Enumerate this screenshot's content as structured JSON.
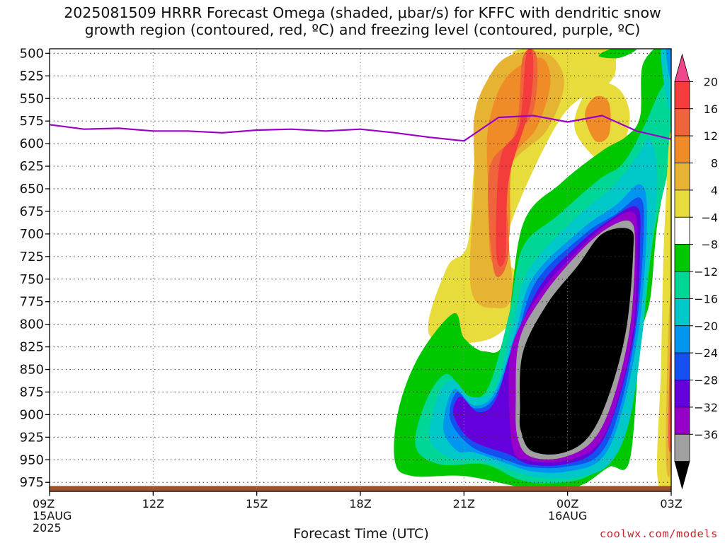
{
  "title_line1": "2025081509 HRRR Forecast Omega (shaded, μbar/s) for KFFC with dendritic snow",
  "title_line2": "growth region (contoured, red, ºC) and freezing level (contoured, purple, ºC)",
  "credit": "coolwx.com/models",
  "chart_data": {
    "type": "heatmap",
    "xlabel": "Forecast Time (UTC)",
    "ylabel": "",
    "y_axis": "pressure (mb), inverted",
    "ylim": [
      985,
      495
    ],
    "xlim": [
      0,
      18
    ],
    "x_units": "hours after 2025-08-15 09Z",
    "y_ticks": [
      500,
      525,
      550,
      575,
      600,
      625,
      650,
      675,
      700,
      725,
      750,
      775,
      800,
      825,
      850,
      875,
      900,
      925,
      950,
      975
    ],
    "x_ticks": [
      {
        "h": 0,
        "lines": [
          "09Z",
          "15AUG",
          "2025"
        ]
      },
      {
        "h": 3,
        "lines": [
          "12Z"
        ]
      },
      {
        "h": 6,
        "lines": [
          "15Z"
        ]
      },
      {
        "h": 9,
        "lines": [
          "18Z"
        ]
      },
      {
        "h": 12,
        "lines": [
          "21Z"
        ]
      },
      {
        "h": 15,
        "lines": [
          "00Z",
          "16AUG"
        ]
      },
      {
        "h": 18,
        "lines": [
          "03Z"
        ]
      }
    ],
    "grid": "dotted",
    "colorbar": {
      "labels": [
        20,
        16,
        12,
        8,
        4,
        -4,
        -8,
        -12,
        -16,
        -20,
        -24,
        -28,
        -32,
        -36
      ],
      "colors": [
        "#f0468c",
        "#f53c3c",
        "#f0643c",
        "#f08c28",
        "#e6b432",
        "#e8dc3c",
        "#ffffff",
        "#00c800",
        "#00d796",
        "#00c8c8",
        "#0096f0",
        "#1450f0",
        "#6400dc",
        "#9600c8",
        "#a0a0a0",
        "#000000"
      ]
    },
    "freezing_level": {
      "color": "#9b00c8",
      "points": [
        [
          0,
          579
        ],
        [
          1,
          584
        ],
        [
          2,
          583
        ],
        [
          3,
          586
        ],
        [
          4,
          586
        ],
        [
          5,
          588
        ],
        [
          6,
          585
        ],
        [
          7,
          584
        ],
        [
          8,
          586
        ],
        [
          9,
          584
        ],
        [
          10,
          588
        ],
        [
          11,
          593
        ],
        [
          12,
          597
        ],
        [
          13,
          571
        ],
        [
          14,
          569
        ],
        [
          15,
          576
        ],
        [
          16,
          569
        ],
        [
          17,
          586
        ],
        [
          18,
          595
        ]
      ]
    },
    "ground": {
      "color": "#a0522d",
      "from_p": 979,
      "to_p": 985
    },
    "regions": [
      {
        "color": "#e8dc3c",
        "points": [
          [
            11.0,
            812
          ],
          [
            11.5,
            738
          ],
          [
            12.1,
            712
          ],
          [
            12.3,
            624
          ],
          [
            12.6,
            562
          ],
          [
            13.3,
            508
          ],
          [
            13.8,
            495
          ],
          [
            16.3,
            495
          ],
          [
            16.4,
            508
          ],
          [
            16.2,
            533
          ],
          [
            14.8,
            572
          ],
          [
            13.2,
            708
          ],
          [
            13.7,
            752
          ],
          [
            13.5,
            790
          ],
          [
            12.6,
            818
          ]
        ]
      },
      {
        "color": "#e8dc3c",
        "points": [
          [
            15.2,
            582
          ],
          [
            15.4,
            552
          ],
          [
            15.9,
            533
          ],
          [
            16.5,
            540
          ],
          [
            16.8,
            568
          ],
          [
            16.6,
            602
          ],
          [
            16.1,
            620
          ],
          [
            15.6,
            608
          ]
        ]
      },
      {
        "color": "#e6b432",
        "points": [
          [
            12.3,
            570
          ],
          [
            12.7,
            528
          ],
          [
            13.3,
            503
          ],
          [
            14.4,
            500
          ],
          [
            14.9,
            532
          ],
          [
            14.4,
            585
          ],
          [
            13.2,
            638
          ],
          [
            13.4,
            762
          ],
          [
            12.9,
            782
          ],
          [
            12.2,
            760
          ],
          [
            12.3,
            640
          ]
        ]
      },
      {
        "color": "#f08c28",
        "points": [
          [
            12.7,
            582
          ],
          [
            13.2,
            528
          ],
          [
            14.2,
            505
          ],
          [
            14.5,
            533
          ],
          [
            14.1,
            583
          ],
          [
            13.4,
            620
          ],
          [
            13.3,
            705
          ],
          [
            12.8,
            730
          ],
          [
            12.7,
            650
          ]
        ]
      },
      {
        "color": "#f0643c",
        "points": [
          [
            13.7,
            505
          ],
          [
            14.1,
            503
          ],
          [
            14.0,
            565
          ],
          [
            13.2,
            612
          ],
          [
            13.3,
            720
          ],
          [
            12.9,
            745
          ],
          [
            12.7,
            670
          ],
          [
            12.8,
            620
          ],
          [
            13.5,
            585
          ]
        ]
      },
      {
        "color": "#f53c3c",
        "points": [
          [
            13.8,
            503
          ],
          [
            14.0,
            503
          ],
          [
            13.9,
            560
          ],
          [
            13.3,
            640
          ],
          [
            13.2,
            725
          ],
          [
            12.95,
            728
          ],
          [
            12.95,
            660
          ],
          [
            13.1,
            610
          ],
          [
            13.6,
            580
          ]
        ]
      },
      {
        "color": "#f08c28",
        "points": [
          [
            15.5,
            568
          ],
          [
            15.8,
            548
          ],
          [
            16.2,
            555
          ],
          [
            16.2,
            590
          ],
          [
            15.8,
            597
          ]
        ]
      },
      {
        "color": "#00c800",
        "points": [
          [
            10.0,
            952
          ],
          [
            10.1,
            895
          ],
          [
            10.7,
            835
          ],
          [
            11.7,
            788
          ],
          [
            12.0,
            815
          ],
          [
            12.6,
            830
          ],
          [
            13.2,
            815
          ],
          [
            13.7,
            690
          ],
          [
            14.8,
            644
          ],
          [
            16.0,
            608
          ],
          [
            16.7,
            592
          ],
          [
            17.1,
            570
          ],
          [
            17.2,
            510
          ],
          [
            18.0,
            495
          ],
          [
            18.0,
            600
          ],
          [
            17.6,
            688
          ],
          [
            17.4,
            770
          ],
          [
            17.1,
            820
          ],
          [
            16.8,
            950
          ],
          [
            16.2,
            958
          ],
          [
            15.4,
            978
          ],
          [
            14.4,
            983
          ],
          [
            13.6,
            980
          ],
          [
            12.0,
            968
          ],
          [
            10.5,
            968
          ]
        ]
      },
      {
        "color": "#00c800",
        "points": [
          [
            15.9,
            503
          ],
          [
            16.3,
            495
          ],
          [
            17.0,
            495
          ],
          [
            16.5,
            505
          ]
        ]
      },
      {
        "color": "#00d796",
        "points": [
          [
            10.6,
            935
          ],
          [
            10.9,
            885
          ],
          [
            11.5,
            855
          ],
          [
            12.1,
            880
          ],
          [
            12.7,
            870
          ],
          [
            13.3,
            790
          ],
          [
            13.7,
            715
          ],
          [
            14.7,
            680
          ],
          [
            15.9,
            640
          ],
          [
            16.6,
            622
          ],
          [
            17.2,
            582
          ],
          [
            17.7,
            540
          ],
          [
            18.0,
            535
          ],
          [
            18.0,
            610
          ],
          [
            17.5,
            700
          ],
          [
            17.2,
            795
          ],
          [
            16.9,
            880
          ],
          [
            16.5,
            935
          ],
          [
            15.6,
            968
          ],
          [
            14.5,
            976
          ],
          [
            13.6,
            972
          ],
          [
            12.6,
            955
          ],
          [
            11.3,
            955
          ]
        ]
      },
      {
        "color": "#00c8c8",
        "points": [
          [
            11.0,
            925
          ],
          [
            11.3,
            875
          ],
          [
            11.7,
            862
          ],
          [
            12.2,
            880
          ],
          [
            12.9,
            870
          ],
          [
            13.4,
            800
          ],
          [
            13.9,
            738
          ],
          [
            15.3,
            680
          ],
          [
            16.3,
            648
          ],
          [
            17.0,
            615
          ],
          [
            17.4,
            595
          ],
          [
            17.6,
            645
          ],
          [
            17.3,
            750
          ],
          [
            17.2,
            800
          ],
          [
            16.8,
            905
          ],
          [
            16.2,
            955
          ],
          [
            15.2,
            970
          ],
          [
            14.2,
            970
          ],
          [
            13.4,
            962
          ],
          [
            12.4,
            950
          ],
          [
            11.6,
            948
          ]
        ]
      },
      {
        "color": "#0096f0",
        "points": [
          [
            11.4,
            915
          ],
          [
            11.7,
            872
          ],
          [
            12.3,
            890
          ],
          [
            12.9,
            875
          ],
          [
            13.5,
            808
          ],
          [
            14.0,
            748
          ],
          [
            15.4,
            695
          ],
          [
            16.4,
            668
          ],
          [
            17.1,
            645
          ],
          [
            17.3,
            680
          ],
          [
            17.1,
            795
          ],
          [
            16.6,
            893
          ],
          [
            16.0,
            948
          ],
          [
            15.0,
            963
          ],
          [
            14.0,
            963
          ],
          [
            13.3,
            955
          ],
          [
            12.3,
            942
          ],
          [
            11.8,
            940
          ]
        ]
      },
      {
        "color": "#1450f0",
        "points": [
          [
            11.6,
            905
          ],
          [
            11.8,
            875
          ],
          [
            12.3,
            893
          ],
          [
            12.9,
            880
          ],
          [
            13.5,
            818
          ],
          [
            14.1,
            752
          ],
          [
            15.5,
            700
          ],
          [
            16.4,
            678
          ],
          [
            17.1,
            660
          ],
          [
            17.2,
            700
          ],
          [
            17.0,
            800
          ],
          [
            16.5,
            895
          ],
          [
            15.9,
            945
          ],
          [
            14.9,
            958
          ],
          [
            13.9,
            958
          ],
          [
            13.2,
            950
          ],
          [
            12.2,
            935
          ]
        ]
      },
      {
        "color": "#6400dc",
        "points": [
          [
            11.7,
            900
          ],
          [
            11.9,
            880
          ],
          [
            12.4,
            897
          ],
          [
            12.9,
            885
          ],
          [
            13.4,
            826
          ],
          [
            14.2,
            758
          ],
          [
            15.3,
            712
          ],
          [
            16.2,
            685
          ],
          [
            17.0,
            670
          ],
          [
            17.1,
            708
          ],
          [
            16.95,
            805
          ],
          [
            16.4,
            893
          ],
          [
            15.8,
            940
          ],
          [
            14.9,
            955
          ],
          [
            13.9,
            955
          ],
          [
            13.3,
            944
          ],
          [
            12.2,
            928
          ]
        ]
      },
      {
        "color": "#9600c8",
        "points": [
          [
            13.3,
            855
          ],
          [
            13.5,
            812
          ],
          [
            14.3,
            760
          ],
          [
            15.3,
            718
          ],
          [
            16.1,
            690
          ],
          [
            16.9,
            676
          ],
          [
            17.0,
            712
          ],
          [
            16.9,
            805
          ],
          [
            16.4,
            890
          ],
          [
            15.8,
            936
          ],
          [
            14.8,
            952
          ],
          [
            13.8,
            950
          ],
          [
            13.4,
            935
          ]
        ]
      },
      {
        "color": "#a0a0a0",
        "points": [
          [
            13.5,
            885
          ],
          [
            13.6,
            818
          ],
          [
            14.3,
            768
          ],
          [
            15.3,
            722
          ],
          [
            16.1,
            695
          ],
          [
            16.8,
            686
          ],
          [
            16.95,
            715
          ],
          [
            16.8,
            805
          ],
          [
            16.3,
            885
          ],
          [
            15.7,
            930
          ],
          [
            14.8,
            948
          ],
          [
            13.9,
            946
          ],
          [
            13.55,
            925
          ]
        ]
      },
      {
        "color": "#000000",
        "points": [
          [
            13.62,
            895
          ],
          [
            13.7,
            832
          ],
          [
            14.4,
            778
          ],
          [
            15.3,
            735
          ],
          [
            16.0,
            700
          ],
          [
            16.8,
            695
          ],
          [
            16.9,
            720
          ],
          [
            16.7,
            805
          ],
          [
            16.2,
            878
          ],
          [
            15.6,
            925
          ],
          [
            14.8,
            943
          ],
          [
            13.95,
            940
          ],
          [
            13.65,
            918
          ]
        ]
      },
      {
        "color": "#e8dc3c",
        "points": [
          [
            17.6,
            968
          ],
          [
            17.7,
            852
          ],
          [
            17.8,
            700
          ],
          [
            18.0,
            598
          ],
          [
            18.0,
            968
          ]
        ]
      },
      {
        "color": "#e6b432",
        "points": [
          [
            17.85,
            950
          ],
          [
            17.9,
            822
          ],
          [
            18.0,
            770
          ],
          [
            18.0,
            950
          ]
        ]
      },
      {
        "color": "#f0643c",
        "points": [
          [
            17.92,
            930
          ],
          [
            17.95,
            850
          ],
          [
            18.0,
            820
          ],
          [
            18.0,
            930
          ]
        ]
      },
      {
        "color": "#00c8c8",
        "points": [
          [
            17.7,
            495
          ],
          [
            18.0,
            495
          ],
          [
            18.0,
            560
          ],
          [
            17.85,
            548
          ]
        ]
      },
      {
        "color": "#0096f0",
        "points": [
          [
            17.85,
            495
          ],
          [
            18.0,
            495
          ],
          [
            18.0,
            528
          ],
          [
            17.92,
            520
          ]
        ]
      }
    ]
  }
}
